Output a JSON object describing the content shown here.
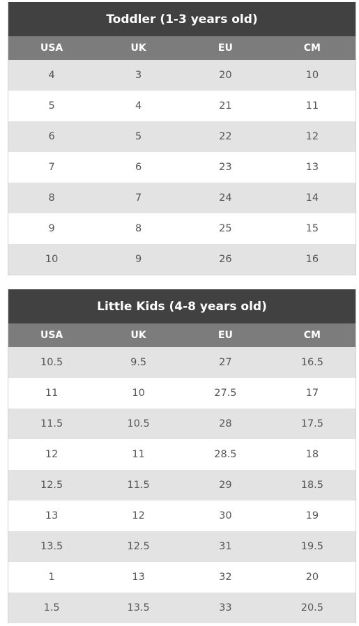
{
  "toddler": {
    "title": "Toddler (1-3 years old)",
    "headers": [
      "USA",
      "UK",
      "EU",
      "CM"
    ],
    "rows": [
      [
        "4",
        "3",
        "20",
        "10"
      ],
      [
        "5",
        "4",
        "21",
        "11"
      ],
      [
        "6",
        "5",
        "22",
        "12"
      ],
      [
        "7",
        "6",
        "23",
        "13"
      ],
      [
        "8",
        "7",
        "24",
        "14"
      ],
      [
        "9",
        "8",
        "25",
        "15"
      ],
      [
        "10",
        "9",
        "26",
        "16"
      ]
    ]
  },
  "little_kids": {
    "title": "Little Kids (4-8 years old)",
    "headers": [
      "USA",
      "UK",
      "EU",
      "CM"
    ],
    "rows": [
      [
        "10.5",
        "9.5",
        "27",
        "16.5"
      ],
      [
        "11",
        "10",
        "27.5",
        "17"
      ],
      [
        "11.5",
        "10.5",
        "28",
        "17.5"
      ],
      [
        "12",
        "11",
        "28.5",
        "18"
      ],
      [
        "12.5",
        "11.5",
        "29",
        "18.5"
      ],
      [
        "13",
        "12",
        "30",
        "19"
      ],
      [
        "13.5",
        "12.5",
        "31",
        "19.5"
      ],
      [
        "1",
        "13",
        "32",
        "20"
      ],
      [
        "1.5",
        "13.5",
        "33",
        "20.5"
      ]
    ]
  }
}
